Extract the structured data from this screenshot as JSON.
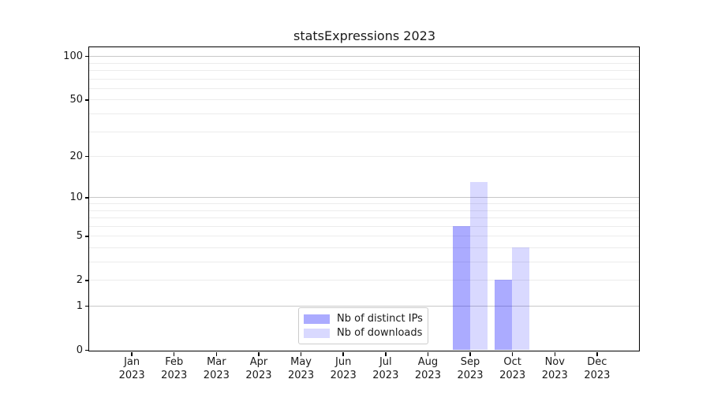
{
  "chart_data": {
    "type": "bar",
    "title": "statsExpressions 2023",
    "categories": [
      "Jan",
      "Feb",
      "Mar",
      "Apr",
      "May",
      "Jun",
      "Jul",
      "Aug",
      "Sep",
      "Oct",
      "Nov",
      "Dec"
    ],
    "year_label": "2023",
    "series": [
      {
        "name": "Nb of distinct IPs",
        "color": "rgba(0,0,255,0.33)",
        "values": [
          0,
          0,
          0,
          0,
          0,
          0,
          0,
          0,
          6,
          2,
          0,
          0
        ]
      },
      {
        "name": "Nb of downloads",
        "color": "rgba(0,0,255,0.15)",
        "values": [
          0,
          0,
          0,
          0,
          0,
          0,
          0,
          0,
          13,
          4,
          0,
          0
        ]
      }
    ],
    "yscale": "log1p",
    "ylim": [
      0,
      115
    ],
    "y_ticks": [
      0,
      1,
      2,
      5,
      10,
      20,
      50,
      100
    ],
    "major_gridlines": [
      1,
      10,
      100
    ],
    "minor_gridlines": [
      2,
      3,
      4,
      5,
      6,
      7,
      8,
      9,
      20,
      30,
      40,
      50,
      60,
      70,
      80,
      90
    ],
    "grid": "horizontal",
    "legend_position": "lower center"
  },
  "colors": {
    "major_grid": "#c8c8c8",
    "minor_grid": "#ececec",
    "spine": "#000000",
    "text": "#1a1a1a",
    "legend_border": "#cccccc"
  }
}
